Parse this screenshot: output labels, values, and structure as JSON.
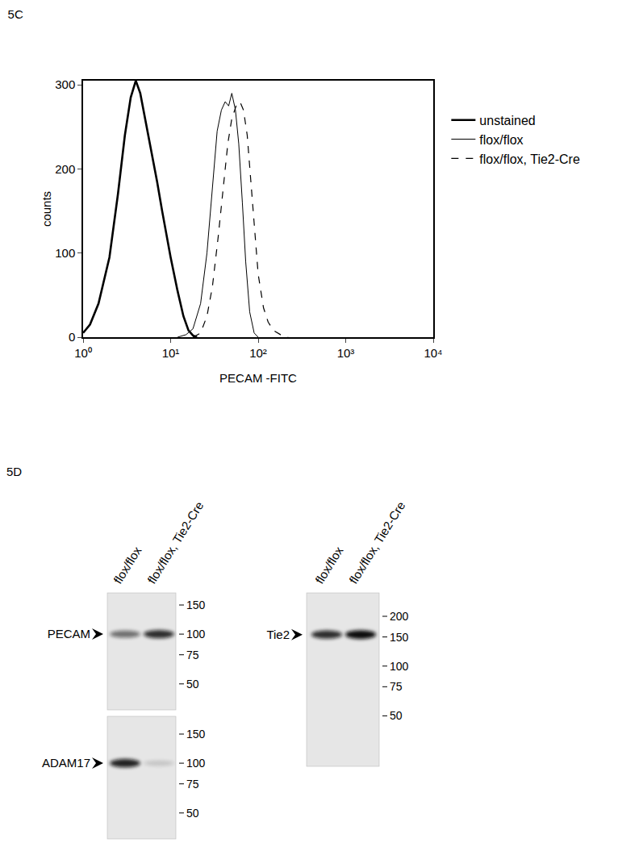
{
  "chart_data": {
    "type": "line",
    "title": "5C",
    "x_label": "PECAM -FITC",
    "y_label": "counts",
    "log": "x",
    "xlim": [
      1,
      10000
    ],
    "ylim": [
      0,
      305
    ],
    "xticks": [
      {
        "value": 1,
        "label": "10⁰"
      },
      {
        "value": 10,
        "label": "10¹"
      },
      {
        "value": 100,
        "label": "10²"
      },
      {
        "value": 1000,
        "label": "10³"
      },
      {
        "value": 10000,
        "label": "10⁴"
      }
    ],
    "yticks": [
      0,
      100,
      200,
      300
    ],
    "grid": false,
    "legend": "right",
    "series": [
      {
        "name": "unstained",
        "color": "#000000",
        "line_style": "thick",
        "x": [
          1,
          1.2,
          1.5,
          2,
          2.5,
          3,
          3.5,
          4,
          4.5,
          5,
          6,
          7,
          8,
          10,
          12,
          14,
          16,
          18,
          20
        ],
        "values": [
          5,
          15,
          40,
          95,
          170,
          240,
          285,
          305,
          290,
          265,
          225,
          185,
          150,
          95,
          55,
          25,
          8,
          2,
          0
        ]
      },
      {
        "name": "flox/flox",
        "color": "#000000",
        "line_style": "solid",
        "x": [
          12,
          15,
          18,
          22,
          26,
          30,
          34,
          38,
          42,
          46,
          50,
          55,
          60,
          66,
          72,
          80,
          90,
          100
        ],
        "values": [
          0,
          3,
          10,
          40,
          100,
          180,
          245,
          270,
          280,
          275,
          290,
          270,
          230,
          160,
          90,
          30,
          5,
          0
        ]
      },
      {
        "name": "flox/flox, Tie2-Cre",
        "color": "#000000",
        "line_style": "dashed",
        "x": [
          18,
          22,
          26,
          30,
          35,
          40,
          45,
          50,
          56,
          62,
          68,
          75,
          82,
          90,
          100,
          115,
          130,
          150,
          180,
          220
        ],
        "values": [
          0,
          5,
          25,
          60,
          120,
          180,
          230,
          260,
          275,
          280,
          270,
          240,
          190,
          130,
          75,
          35,
          18,
          8,
          3,
          0
        ]
      }
    ]
  },
  "figure_5D": {
    "label": "5D",
    "blots": [
      {
        "lanes": [
          "flox/flox",
          "flox/flox, Tie2-Cre"
        ],
        "rows": [
          {
            "protein": "PECAM",
            "markers_kda": [
              150,
              100,
              75,
              50
            ],
            "band_kda": 100,
            "band_intensity": [
              0.55,
              0.85
            ]
          },
          {
            "protein": "ADAM17",
            "markers_kda": [
              150,
              100,
              75,
              50
            ],
            "band_kda": 100,
            "band_intensity": [
              0.9,
              0.15
            ]
          }
        ]
      },
      {
        "lanes": [
          "flox/flox",
          "flox/flox, Tie2-Cre"
        ],
        "rows": [
          {
            "protein": "Tie2",
            "markers_kda": [
              200,
              150,
              100,
              75,
              50
            ],
            "band_kda": 155,
            "band_intensity": [
              0.85,
              1
            ]
          }
        ]
      }
    ]
  }
}
